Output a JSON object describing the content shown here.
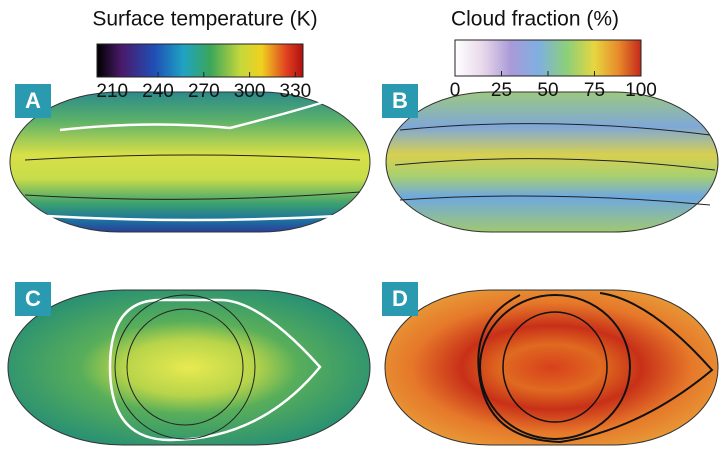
{
  "colorbars": [
    {
      "title": "Surface temperature (K)",
      "lim": [
        200,
        335
      ],
      "ticks": [
        210,
        240,
        270,
        300,
        330
      ]
    },
    {
      "title": "Cloud fraction (%)",
      "lim": [
        0,
        100
      ],
      "ticks": [
        0,
        25,
        50,
        75,
        100
      ]
    }
  ],
  "panels": [
    {
      "label": "A"
    },
    {
      "label": "B"
    },
    {
      "label": "C"
    },
    {
      "label": "D"
    }
  ]
}
